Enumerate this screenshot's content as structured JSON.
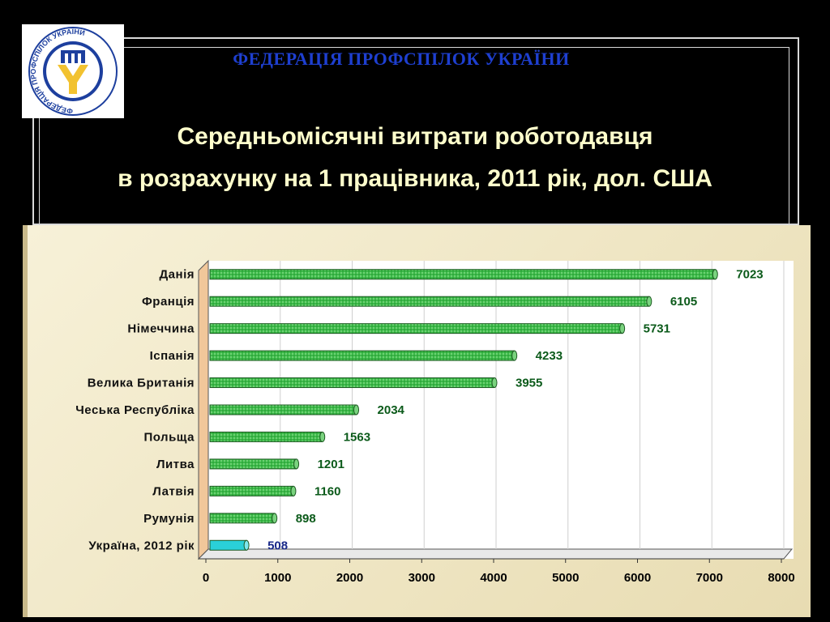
{
  "header": {
    "org_name": "ФЕДЕРАЦІЯ ПРОФСПІЛОК УКРАЇНИ",
    "logo_text": "ФЕДЕРАЦІЯ ПРОФСПІЛОК УКРАЇНИ",
    "title_line1": "Середньомісячні витрати роботодавця",
    "title_line2": "в розрахунку на 1 працівника, 2011 рік, дол. США"
  },
  "colors": {
    "bar": "#3dbb4a",
    "bar_highlight": "#2ad0d8",
    "value_label": "#0b5a1a",
    "value_label_highlight": "#1a2a8a",
    "title": "#ffffcc",
    "org": "#1e3fd0"
  },
  "chart_data": {
    "type": "bar",
    "orientation": "horizontal",
    "categories": [
      "Данія",
      "Франція",
      "Німеччина",
      "Іспанія",
      "Велика Британія",
      "Чеська Республіка",
      "Польща",
      "Литва",
      "Латвія",
      "Румунія",
      "Україна, 2012 рік"
    ],
    "values": [
      7023,
      6105,
      5731,
      4233,
      3955,
      2034,
      1563,
      1201,
      1160,
      898,
      508
    ],
    "highlight_category": "Україна, 2012 рік",
    "xlim": [
      0,
      8000
    ],
    "xticks": [
      0,
      1000,
      2000,
      3000,
      4000,
      5000,
      6000,
      7000,
      8000
    ],
    "grid": true
  }
}
